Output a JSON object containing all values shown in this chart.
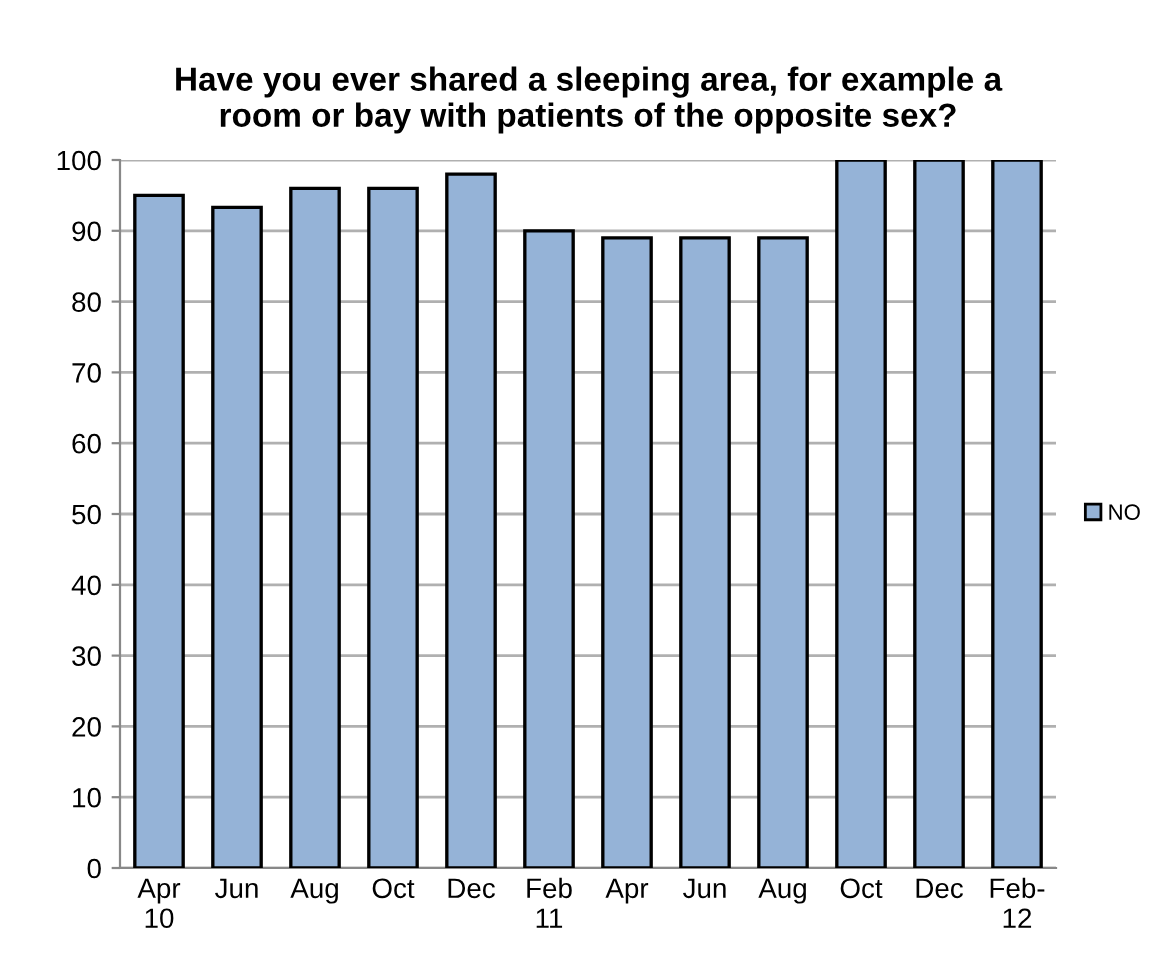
{
  "chart_data": {
    "type": "bar",
    "title": "Have you ever shared a sleeping area, for example a\nroom or bay with patients of the opposite sex?",
    "categories": [
      "Apr\n10",
      "Jun",
      "Aug",
      "Oct",
      "Dec",
      "Feb\n11",
      "Apr",
      "Jun",
      "Aug",
      "Oct",
      "Dec",
      "Feb-\n12"
    ],
    "series": [
      {
        "name": "NO",
        "color": "#95b3d7",
        "values": [
          95,
          93.3,
          96,
          96,
          98,
          90,
          89,
          89,
          89,
          100,
          100,
          100
        ]
      }
    ],
    "ylim": [
      0,
      100
    ],
    "yticks": [
      0,
      10,
      20,
      30,
      40,
      50,
      60,
      70,
      80,
      90,
      100
    ],
    "grid": "y",
    "legend": "right"
  }
}
